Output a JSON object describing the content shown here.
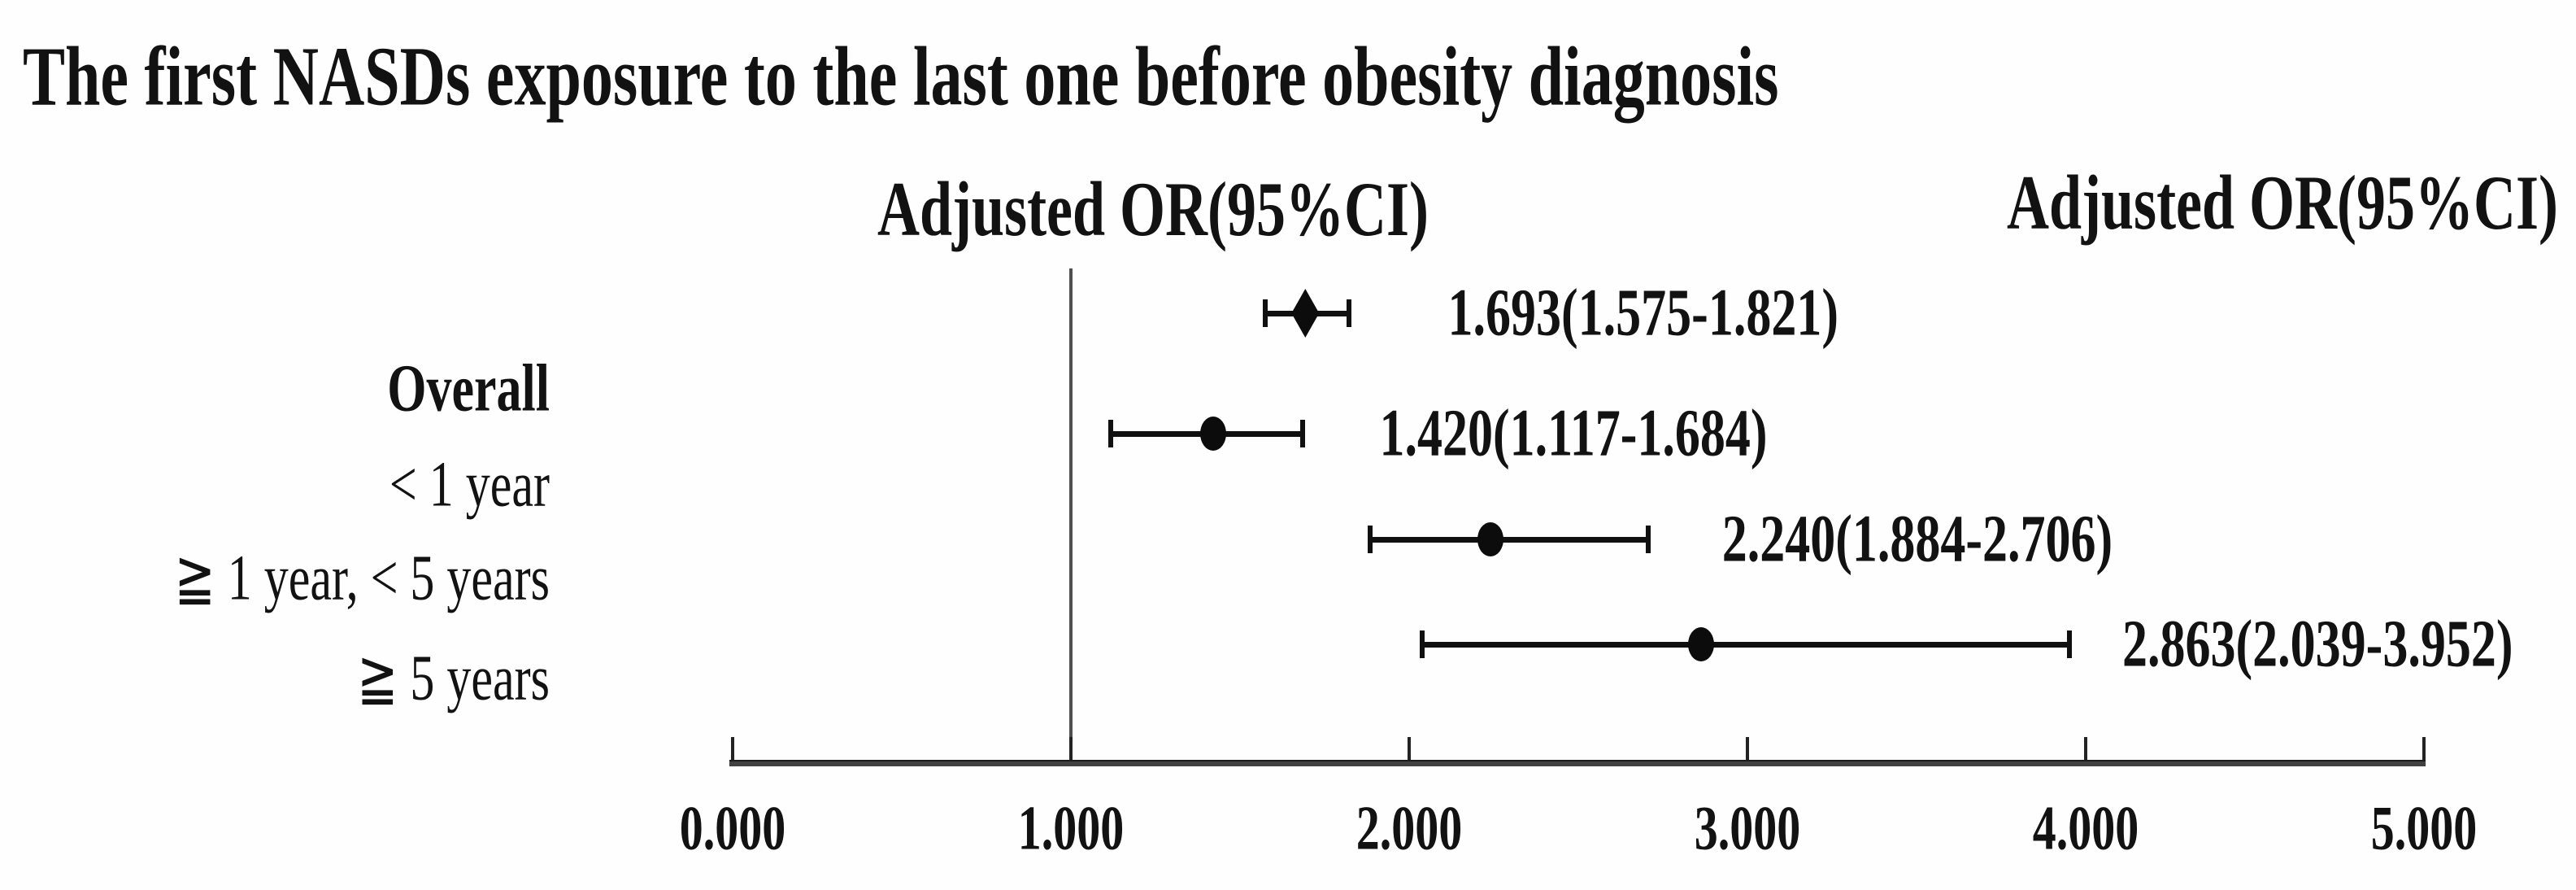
{
  "figure": {
    "title": "The first NASDs exposure to the last one before obesity diagnosis",
    "column_header_left": "Adjusted OR(95%CI)",
    "column_header_right": "Adjusted OR(95%CI)"
  },
  "chart_data": {
    "type": "scatter",
    "variant": "forest-plot",
    "title": "The first NASDs exposure to the last one before obesity diagnosis",
    "value_column_header": "Adjusted OR(95%CI)",
    "x_axis": {
      "range": [
        0,
        5
      ],
      "tick_values": [
        0,
        1,
        2,
        3,
        4,
        5
      ],
      "tick_labels": [
        "0.000",
        "1.000",
        "2.000",
        "3.000",
        "4.000",
        "5.000"
      ],
      "reference_line_x": 1.0,
      "grid": false
    },
    "rows": [
      {
        "label": "Overall",
        "label_bold": true,
        "marker": "diamond",
        "or": 1.693,
        "ci_low": 1.575,
        "ci_high": 1.821,
        "ci_text": "1.693(1.575-1.821)"
      },
      {
        "label": "< 1 year",
        "label_bold": false,
        "marker": "circle",
        "or": 1.42,
        "ci_low": 1.117,
        "ci_high": 1.684,
        "ci_text": "1.420(1.117-1.684)"
      },
      {
        "label": "≧ 1 year, < 5 years",
        "label_bold": false,
        "marker": "circle",
        "or": 2.24,
        "ci_low": 1.884,
        "ci_high": 2.706,
        "ci_text": "2.240(1.884-2.706)"
      },
      {
        "label": "≧ 5 years",
        "label_bold": false,
        "marker": "circle",
        "or": 2.863,
        "ci_low": 2.039,
        "ci_high": 3.952,
        "ci_text": "2.863(2.039-3.952)"
      }
    ],
    "colors": {
      "ink": "#111111",
      "axis": "#414141",
      "reference_line": "#4f4f4f",
      "background": "#fefefe"
    }
  }
}
